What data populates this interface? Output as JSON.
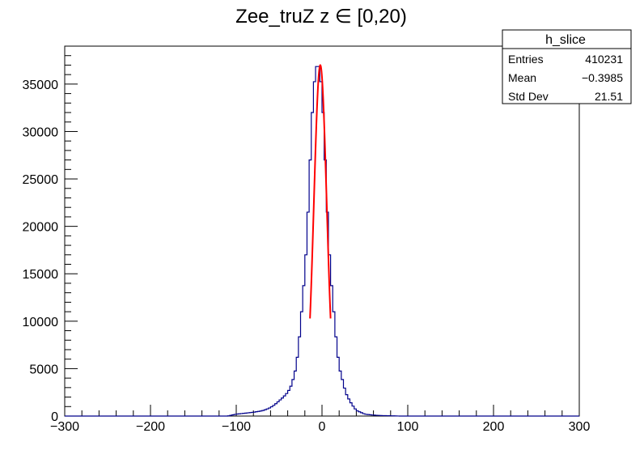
{
  "chart_data": {
    "type": "histogram",
    "title": "Zee_truZ z  ∈ [0,20)",
    "xlabel": "",
    "ylabel": "",
    "xlim": [
      -300,
      300
    ],
    "ylim": [
      0,
      39000
    ],
    "x_ticks": [
      -300,
      -200,
      -100,
      0,
      100,
      200,
      300
    ],
    "y_ticks": [
      0,
      5000,
      10000,
      15000,
      20000,
      25000,
      30000,
      35000
    ],
    "x_tick_labels": [
      "−300",
      "−200",
      "−100",
      "0",
      "100",
      "200",
      "300"
    ],
    "y_tick_labels": [
      "0",
      "5000",
      "10000",
      "15000",
      "20000",
      "25000",
      "30000",
      "35000"
    ],
    "grid": false,
    "legend": "top-right",
    "series_color": "#00008b",
    "fit_color": "#ff0000",
    "bin_width": 2.5,
    "histogram": {
      "x": [
        -110,
        -100,
        -90,
        -80,
        -70,
        -65,
        -60,
        -55,
        -50,
        -45,
        -40,
        -37.5,
        -35,
        -32.5,
        -30,
        -27.5,
        -25,
        -22.5,
        -20,
        -17.5,
        -15,
        -12.5,
        -10,
        -7.5,
        -5,
        -2.5,
        0,
        2.5,
        5,
        7.5,
        10,
        12.5,
        15,
        17.5,
        20,
        22.5,
        25,
        27.5,
        30,
        32.5,
        35,
        37.5,
        40,
        45,
        50,
        55,
        60,
        70,
        80,
        90,
        100,
        110
      ],
      "y": [
        0,
        200,
        300,
        400,
        550,
        700,
        900,
        1200,
        1600,
        2000,
        2500,
        2900,
        3400,
        4300,
        5200,
        7200,
        9500,
        12500,
        15000,
        19000,
        24000,
        30000,
        34000,
        36500,
        37200,
        36500,
        34000,
        30000,
        24000,
        19000,
        15000,
        12500,
        9500,
        7200,
        5200,
        4300,
        3400,
        2500,
        2000,
        1600,
        1200,
        900,
        600,
        400,
        200,
        150,
        100,
        50,
        30,
        0,
        0,
        0
      ]
    },
    "fit_curve": {
      "type": "gaussian",
      "mean": -2.0,
      "sigma": 7.5,
      "amplitude": 37000,
      "range": [
        -14,
        10
      ]
    },
    "stats_box": {
      "title": "h_slice",
      "rows": [
        {
          "label": "Entries",
          "value": "410231"
        },
        {
          "label": "Mean",
          "value": "−0.3985"
        },
        {
          "label": "Std Dev",
          "value": "21.51"
        }
      ]
    }
  }
}
